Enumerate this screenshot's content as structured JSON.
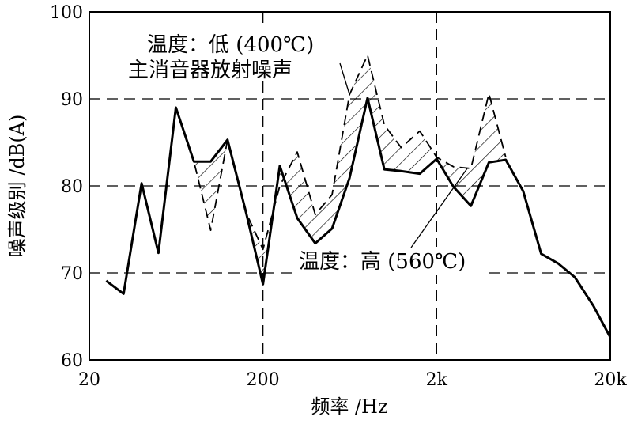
{
  "chart_data": {
    "type": "line",
    "title": "",
    "xlabel": "频率 /Hz",
    "ylabel": "噪声级别 /dB(A)",
    "x_scale": "log",
    "xlim": [
      20,
      20000
    ],
    "ylim": [
      60,
      100
    ],
    "x_ticks": [
      {
        "value": 20,
        "label": "20"
      },
      {
        "value": 200,
        "label": "200"
      },
      {
        "value": 2000,
        "label": "2k"
      },
      {
        "value": 20000,
        "label": "20k"
      }
    ],
    "y_ticks": [
      {
        "value": 60,
        "label": "60"
      },
      {
        "value": 70,
        "label": "70"
      },
      {
        "value": 80,
        "label": "80"
      },
      {
        "value": 90,
        "label": "90"
      },
      {
        "value": 100,
        "label": "100"
      }
    ],
    "grid": true,
    "series": [
      {
        "style": "solid",
        "points": [
          [
            25,
            69.1
          ],
          [
            31.5,
            67.6
          ],
          [
            40,
            80.3
          ],
          [
            50,
            72.3
          ],
          [
            63,
            89.0
          ],
          [
            80,
            82.8
          ],
          [
            100,
            82.8
          ],
          [
            125,
            85.3
          ],
          [
            160,
            76.9
          ],
          [
            200,
            68.7
          ],
          [
            250,
            82.3
          ],
          [
            315,
            76.3
          ],
          [
            400,
            73.4
          ],
          [
            500,
            75.1
          ],
          [
            630,
            80.9
          ],
          [
            800,
            90.1
          ],
          [
            1000,
            81.9
          ],
          [
            1250,
            81.7
          ],
          [
            1600,
            81.4
          ],
          [
            2000,
            83.1
          ],
          [
            2500,
            79.9
          ],
          [
            3150,
            77.7
          ],
          [
            4000,
            82.7
          ],
          [
            5000,
            83.0
          ],
          [
            6300,
            79.4
          ],
          [
            8000,
            72.2
          ],
          [
            10000,
            71.1
          ],
          [
            12500,
            69.5
          ],
          [
            16000,
            66.2
          ],
          [
            20000,
            62.6
          ]
        ]
      },
      {
        "style": "dashed",
        "points": [
          [
            63,
            89.0
          ],
          [
            80,
            82.8
          ],
          [
            100,
            74.9
          ],
          [
            125,
            85.3
          ],
          [
            160,
            76.9
          ],
          [
            200,
            72.7
          ],
          [
            250,
            80.0
          ],
          [
            315,
            83.9
          ],
          [
            400,
            76.7
          ],
          [
            500,
            79.0
          ],
          [
            630,
            90.5
          ],
          [
            800,
            95.0
          ],
          [
            1000,
            87.0
          ],
          [
            1250,
            84.4
          ],
          [
            1600,
            86.3
          ],
          [
            2000,
            83.3
          ],
          [
            2500,
            82.2
          ],
          [
            3150,
            82.0
          ],
          [
            4000,
            90.6
          ],
          [
            5000,
            83.3
          ]
        ]
      }
    ],
    "hatched_region": "between dashed and solid series",
    "annotations": [
      {
        "id": "low",
        "lines": [
          "温度：低 (400℃)",
          "主消音器放射噪声"
        ],
        "points_to_x": 630,
        "points_to_y": 90.5
      },
      {
        "id": "high",
        "lines": [
          "温度：高 (560℃)"
        ],
        "points_to_x": 3000,
        "points_to_y": 82.0
      }
    ]
  }
}
